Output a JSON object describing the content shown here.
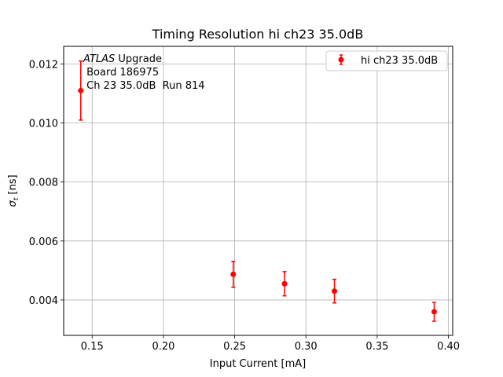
{
  "chart_data": {
    "type": "scatter",
    "title": "Timing Resolution hi ch23 35.0dB",
    "xlabel": "Input Current [mA]",
    "ylabel_main": "σ",
    "ylabel_sub": "t",
    "ylabel_unit": " [ns]",
    "xlim": [
      0.13,
      0.403
    ],
    "ylim": [
      0.0028,
      0.0126
    ],
    "grid": true,
    "legend_position": "top-right",
    "x_ticks": [
      0.15,
      0.2,
      0.25,
      0.3,
      0.35,
      0.4
    ],
    "x_tick_labels": [
      "0.15",
      "0.20",
      "0.25",
      "0.30",
      "0.35",
      "0.40"
    ],
    "y_ticks": [
      0.004,
      0.006,
      0.008,
      0.01,
      0.012
    ],
    "y_tick_labels": [
      "0.004",
      "0.006",
      "0.008",
      "0.010",
      "0.012"
    ],
    "series": [
      {
        "name": "hi ch23 35.0dB",
        "color": "#ff0000",
        "x": [
          0.142,
          0.249,
          0.285,
          0.32,
          0.39
        ],
        "y": [
          0.0111,
          0.00487,
          0.00455,
          0.0043,
          0.0036
        ],
        "yerr": [
          0.001,
          0.00044,
          0.00041,
          0.0004,
          0.00032
        ]
      }
    ],
    "annotation": {
      "line1_italic": "ATLAS",
      "line1_rest": " Upgrade",
      "line2": " Board 186975",
      "line3": " Ch 23 35.0dB  Run 814"
    }
  }
}
